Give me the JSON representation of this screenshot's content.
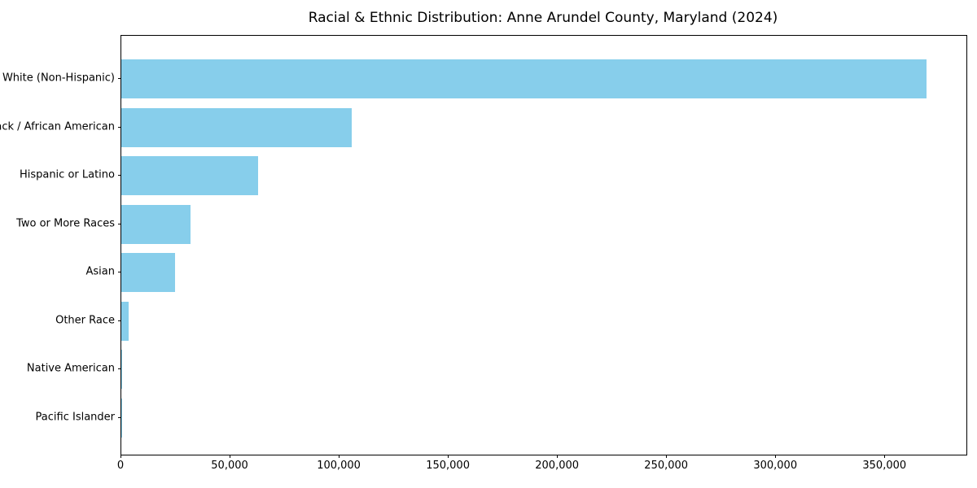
{
  "chart_data": {
    "type": "bar",
    "orientation": "horizontal",
    "title": "Racial & Ethnic Distribution: Anne Arundel County, Maryland (2024)",
    "categories": [
      "White (Non-Hispanic)",
      "Black / African American",
      "Hispanic or Latino",
      "Two or More Races",
      "Asian",
      "Other Race",
      "Native American",
      "Pacific Islander"
    ],
    "values": [
      368800,
      105700,
      62700,
      31800,
      24700,
      3400,
      500,
      200
    ],
    "bar_color": "#87CEEB",
    "xlabel": "",
    "ylabel": "",
    "xlim": [
      0,
      387200
    ],
    "x_ticks": [
      0,
      50000,
      100000,
      150000,
      200000,
      250000,
      300000,
      350000
    ],
    "x_tick_labels": [
      "0",
      "50,000",
      "100,000",
      "150,000",
      "200,000",
      "250,000",
      "300,000",
      "350,000"
    ],
    "grid": false,
    "legend": "none",
    "background_color": "#ffffff",
    "spine_color": "#000000"
  }
}
